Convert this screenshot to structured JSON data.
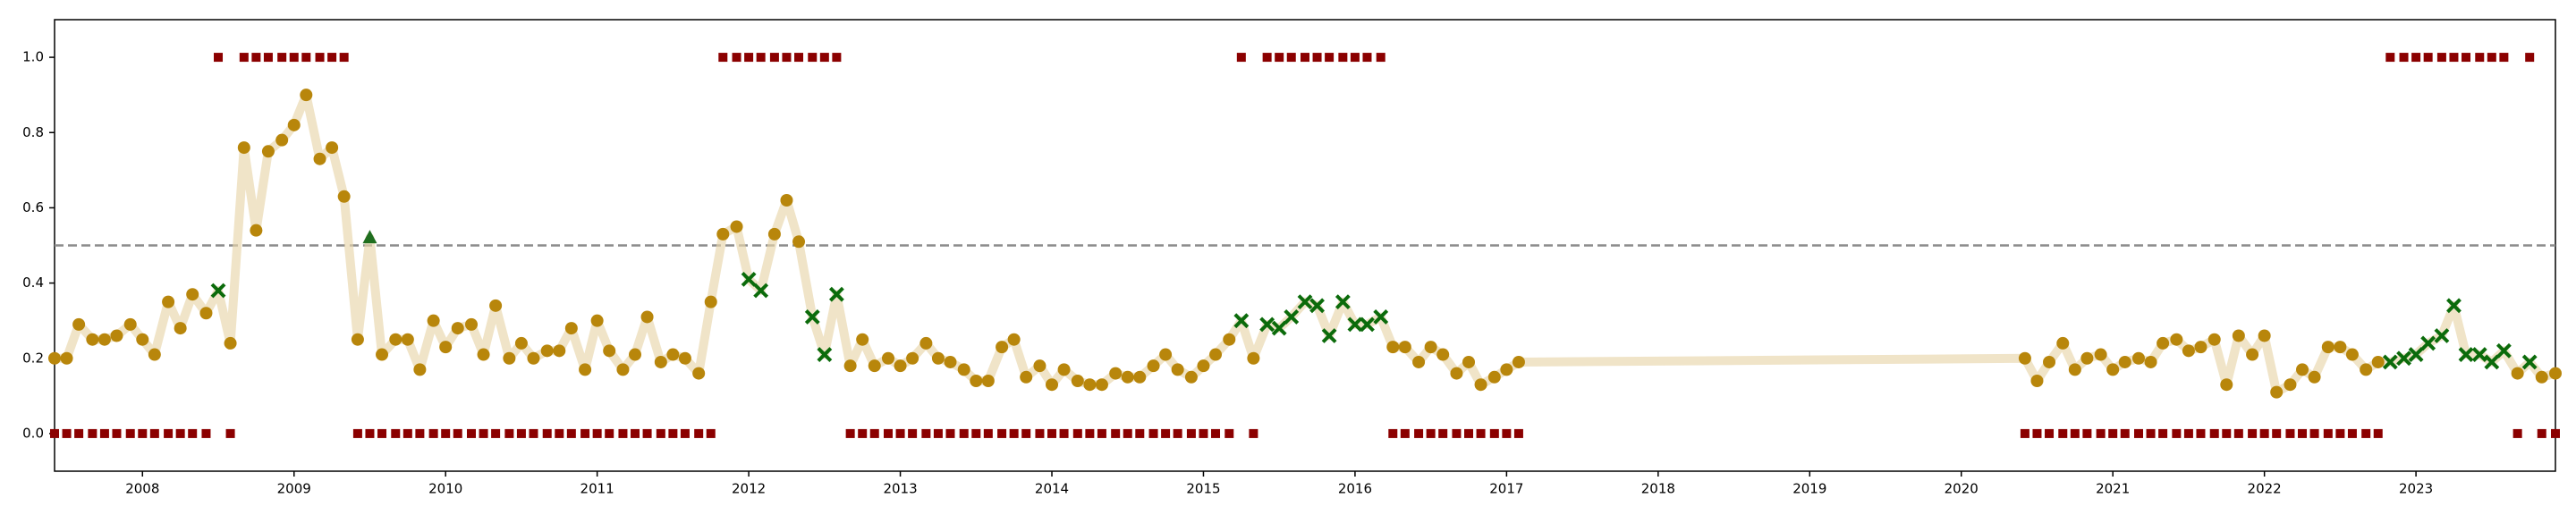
{
  "chart_data": {
    "type": "line",
    "x": [
      2007.42,
      2007.5,
      2007.58,
      2007.67,
      2007.75,
      2007.83,
      2007.92,
      2008.0,
      2008.08,
      2008.17,
      2008.25,
      2008.33,
      2008.42,
      2008.5,
      2008.58,
      2008.67,
      2008.75,
      2008.83,
      2008.92,
      2009.0,
      2009.08,
      2009.17,
      2009.25,
      2009.33,
      2009.42,
      2009.5,
      2009.58,
      2009.67,
      2009.75,
      2009.83,
      2009.92,
      2010.0,
      2010.08,
      2010.17,
      2010.25,
      2010.33,
      2010.42,
      2010.5,
      2010.58,
      2010.67,
      2010.75,
      2010.83,
      2010.92,
      2011.0,
      2011.08,
      2011.17,
      2011.25,
      2011.33,
      2011.42,
      2011.5,
      2011.58,
      2011.67,
      2011.75,
      2011.83,
      2011.92,
      2012.0,
      2012.08,
      2012.17,
      2012.25,
      2012.33,
      2012.42,
      2012.5,
      2012.58,
      2012.67,
      2012.75,
      2012.83,
      2012.92,
      2013.0,
      2013.08,
      2013.17,
      2013.25,
      2013.33,
      2013.42,
      2013.5,
      2013.58,
      2013.67,
      2013.75,
      2013.83,
      2013.92,
      2014.0,
      2014.08,
      2014.17,
      2014.25,
      2014.33,
      2014.42,
      2014.5,
      2014.58,
      2014.67,
      2014.75,
      2014.83,
      2014.92,
      2015.0,
      2015.08,
      2015.17,
      2015.25,
      2015.33,
      2015.42,
      2015.5,
      2015.58,
      2015.67,
      2015.75,
      2015.83,
      2015.92,
      2016.0,
      2016.08,
      2016.17,
      2016.25,
      2016.33,
      2016.42,
      2016.5,
      2016.58,
      2016.67,
      2016.75,
      2016.83,
      2016.92,
      2017.0,
      2017.08,
      2020.42,
      2020.5,
      2020.58,
      2020.67,
      2020.75,
      2020.83,
      2020.92,
      2021.0,
      2021.08,
      2021.17,
      2021.25,
      2021.33,
      2021.42,
      2021.5,
      2021.58,
      2021.67,
      2021.75,
      2021.83,
      2021.92,
      2022.0,
      2022.08,
      2022.17,
      2022.25,
      2022.33,
      2022.42,
      2022.5,
      2022.58,
      2022.67,
      2022.75,
      2022.83,
      2022.92,
      2023.0,
      2023.08,
      2023.17,
      2023.25,
      2023.33,
      2023.42,
      2023.5,
      2023.58,
      2023.67,
      2023.75,
      2023.83,
      2023.92
    ],
    "values": [
      0.2,
      0.2,
      0.29,
      0.25,
      0.25,
      0.26,
      0.29,
      0.25,
      0.21,
      0.35,
      0.28,
      0.37,
      0.32,
      0.38,
      0.24,
      0.76,
      0.54,
      0.75,
      0.78,
      0.82,
      0.9,
      0.73,
      0.76,
      0.63,
      0.25,
      0.52,
      0.21,
      0.25,
      0.25,
      0.17,
      0.3,
      0.23,
      0.28,
      0.29,
      0.21,
      0.34,
      0.2,
      0.24,
      0.2,
      0.22,
      0.22,
      0.28,
      0.17,
      0.3,
      0.22,
      0.17,
      0.21,
      0.31,
      0.19,
      0.21,
      0.2,
      0.16,
      0.35,
      0.53,
      0.55,
      0.41,
      0.38,
      0.53,
      0.62,
      0.51,
      0.31,
      0.21,
      0.37,
      0.18,
      0.25,
      0.18,
      0.2,
      0.18,
      0.2,
      0.24,
      0.2,
      0.19,
      0.17,
      0.14,
      0.14,
      0.23,
      0.25,
      0.15,
      0.18,
      0.13,
      0.17,
      0.14,
      0.13,
      0.13,
      0.16,
      0.15,
      0.15,
      0.18,
      0.21,
      0.17,
      0.15,
      0.18,
      0.21,
      0.25,
      0.3,
      0.2,
      0.29,
      0.28,
      0.31,
      0.35,
      0.34,
      0.26,
      0.35,
      0.29,
      0.29,
      0.31,
      0.23,
      0.23,
      0.19,
      0.23,
      0.21,
      0.16,
      0.19,
      0.13,
      0.15,
      0.17,
      0.19,
      0.2,
      0.14,
      0.19,
      0.24,
      0.17,
      0.2,
      0.21,
      0.17,
      0.19,
      0.2,
      0.19,
      0.24,
      0.25,
      0.22,
      0.23,
      0.25,
      0.13,
      0.26,
      0.21,
      0.26,
      0.11,
      0.13,
      0.17,
      0.15,
      0.23,
      0.23,
      0.21,
      0.17,
      0.19,
      0.19,
      0.2,
      0.21,
      0.24,
      0.26,
      0.34,
      0.21,
      0.21,
      0.19,
      0.22,
      0.16,
      0.19,
      0.15,
      0.16
    ],
    "markers": [
      "o",
      "o",
      "o",
      "o",
      "o",
      "o",
      "o",
      "o",
      "o",
      "o",
      "o",
      "o",
      "o",
      "x",
      "o",
      "o",
      "o",
      "o",
      "o",
      "o",
      "o",
      "o",
      "o",
      "o",
      "o",
      "^",
      "o",
      "o",
      "o",
      "o",
      "o",
      "o",
      "o",
      "o",
      "o",
      "o",
      "o",
      "o",
      "o",
      "o",
      "o",
      "o",
      "o",
      "o",
      "o",
      "o",
      "o",
      "o",
      "o",
      "o",
      "o",
      "o",
      "o",
      "o",
      "o",
      "x",
      "x",
      "o",
      "o",
      "o",
      "x",
      "x",
      "x",
      "o",
      "o",
      "o",
      "o",
      "o",
      "o",
      "o",
      "o",
      "o",
      "o",
      "o",
      "o",
      "o",
      "o",
      "o",
      "o",
      "o",
      "o",
      "o",
      "o",
      "o",
      "o",
      "o",
      "o",
      "o",
      "o",
      "o",
      "o",
      "o",
      "o",
      "o",
      "x",
      "o",
      "x",
      "x",
      "x",
      "x",
      "x",
      "x",
      "x",
      "x",
      "x",
      "x",
      "o",
      "o",
      "o",
      "o",
      "o",
      "o",
      "o",
      "o",
      "o",
      "o",
      "o",
      "o",
      "o",
      "o",
      "o",
      "o",
      "o",
      "o",
      "o",
      "o",
      "o",
      "o",
      "o",
      "o",
      "o",
      "o",
      "o",
      "o",
      "o",
      "o",
      "o",
      "o",
      "o",
      "o",
      "o",
      "o",
      "o",
      "o",
      "o",
      "o",
      "x",
      "x",
      "x",
      "x",
      "x",
      "x",
      "x",
      "x",
      "x",
      "x",
      "o",
      "x",
      "o",
      "o"
    ],
    "regime": [
      0,
      0,
      0,
      0,
      0,
      0,
      0,
      0,
      0,
      0,
      0,
      0,
      0,
      1,
      0,
      1,
      1,
      1,
      1,
      1,
      1,
      1,
      1,
      1,
      0,
      0,
      0,
      0,
      0,
      0,
      0,
      0,
      0,
      0,
      0,
      0,
      0,
      0,
      0,
      0,
      0,
      0,
      0,
      0,
      0,
      0,
      0,
      0,
      0,
      0,
      0,
      0,
      0,
      1,
      1,
      1,
      1,
      1,
      1,
      1,
      1,
      1,
      1,
      0,
      0,
      0,
      0,
      0,
      0,
      0,
      0,
      0,
      0,
      0,
      0,
      0,
      0,
      0,
      0,
      0,
      0,
      0,
      0,
      0,
      0,
      0,
      0,
      0,
      0,
      0,
      0,
      0,
      0,
      0,
      1,
      0,
      1,
      1,
      1,
      1,
      1,
      1,
      1,
      1,
      1,
      1,
      0,
      0,
      0,
      0,
      0,
      0,
      0,
      0,
      0,
      0,
      0,
      0,
      0,
      0,
      0,
      0,
      0,
      0,
      0,
      0,
      0,
      0,
      0,
      0,
      0,
      0,
      0,
      0,
      0,
      0,
      0,
      0,
      0,
      0,
      0,
      0,
      0,
      0,
      0,
      0,
      1,
      1,
      1,
      1,
      1,
      1,
      1,
      1,
      1,
      1,
      0,
      1,
      0,
      0
    ],
    "line_color": "rgba(232,214,170,0.65)",
    "marker_colors": {
      "o": "#b8860b",
      "x": "#0b6b0b",
      "^": "#1f6e1f"
    },
    "regime_color": "#8b0000",
    "hline": 0.5,
    "xlim": [
      2007.42,
      2023.92
    ],
    "ylim": [
      -0.1,
      1.1
    ],
    "xticks": [
      2008,
      2009,
      2010,
      2011,
      2012,
      2013,
      2014,
      2015,
      2016,
      2017,
      2018,
      2019,
      2020,
      2021,
      2022,
      2023
    ],
    "yticks": [
      {
        "value": 0,
        "label": "0.0"
      },
      0.2,
      0.4,
      0.6,
      0.8,
      {
        "value": 1,
        "label": "1.0"
      }
    ],
    "grid": false
  }
}
